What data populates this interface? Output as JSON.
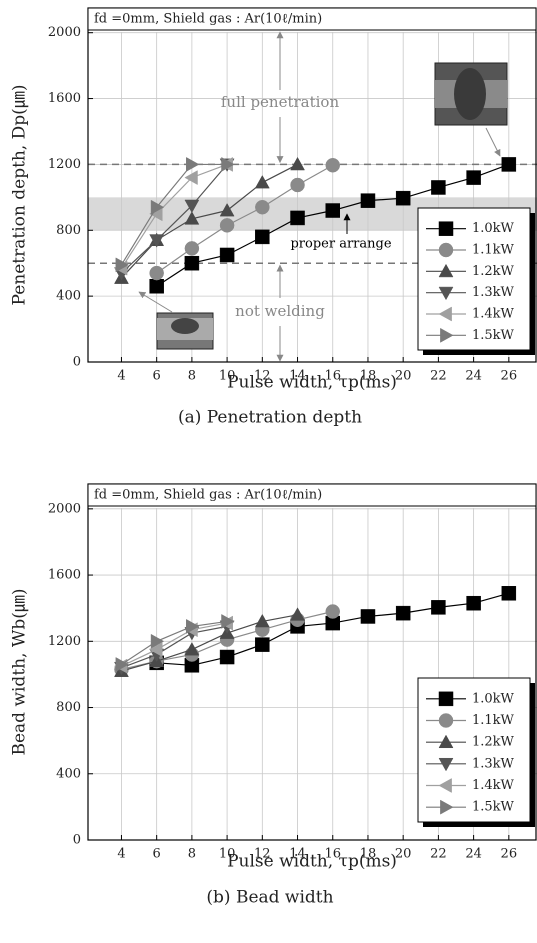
{
  "charts": [
    {
      "type": "line",
      "header": "fd =0mm, Shield gas : Ar(10ℓ/min)",
      "y_label": "Penetration depth, Dp(㎛)",
      "x_label": "Pulse width, τp(ms)",
      "caption": "(a) Penetration depth",
      "x": [
        4,
        6,
        8,
        10,
        12,
        14,
        16,
        18,
        20,
        22,
        24,
        26
      ],
      "xlim": [
        2.1,
        27.6
      ],
      "xticks": [
        4,
        6,
        8,
        10,
        12,
        14,
        16,
        18,
        20,
        22,
        24,
        26
      ],
      "ylim": [
        0,
        2150
      ],
      "yticks": [
        0,
        400,
        800,
        1200,
        1600,
        2000
      ],
      "grid": true,
      "reference_lines": [
        1200,
        600
      ],
      "band": [
        800,
        1000
      ],
      "annotations": [
        "full penetration",
        "proper arrange",
        "not welding"
      ],
      "series": [
        {
          "name": "1.0kW",
          "color": "#000000",
          "marker": "square",
          "values": [
            null,
            460,
            600,
            650,
            760,
            875,
            920,
            980,
            995,
            1060,
            1120,
            1200
          ]
        },
        {
          "name": "1.1kW",
          "color": "#8a8a8a",
          "marker": "circle",
          "values": [
            null,
            540,
            690,
            830,
            940,
            1075,
            1195,
            null,
            null,
            null,
            null,
            null
          ]
        },
        {
          "name": "1.2kW",
          "color": "#4a4a4a",
          "marker": "up",
          "values": [
            510,
            740,
            870,
            920,
            1090,
            1200,
            null,
            null,
            null,
            null,
            null,
            null
          ]
        },
        {
          "name": "1.3kW",
          "color": "#555555",
          "marker": "down",
          "values": [
            540,
            740,
            950,
            1200,
            null,
            null,
            null,
            null,
            null,
            null,
            null,
            null
          ]
        },
        {
          "name": "1.4kW",
          "color": "#a0a0a0",
          "marker": "left",
          "values": [
            570,
            900,
            1120,
            1200,
            null,
            null,
            null,
            null,
            null,
            null,
            null,
            null
          ]
        },
        {
          "name": "1.5kW",
          "color": "#7a7a7a",
          "marker": "right",
          "values": [
            590,
            940,
            1200,
            1200,
            null,
            null,
            null,
            null,
            null,
            null,
            null,
            null
          ]
        }
      ]
    },
    {
      "type": "line",
      "header": "fd =0mm, Shield gas : Ar(10ℓ/min)",
      "y_label": "Bead width, Wb(㎛)",
      "x_label": "Pulse width, τp(ms)",
      "caption": "(b) Bead width",
      "x": [
        4,
        6,
        8,
        10,
        12,
        14,
        16,
        18,
        20,
        22,
        24,
        26
      ],
      "xlim": [
        2.1,
        27.6
      ],
      "xticks": [
        4,
        6,
        8,
        10,
        12,
        14,
        16,
        18,
        20,
        22,
        24,
        26
      ],
      "ylim": [
        0,
        2150
      ],
      "yticks": [
        0,
        400,
        800,
        1200,
        1600,
        2000
      ],
      "grid": true,
      "series": [
        {
          "name": "1.0kW",
          "color": "#000000",
          "marker": "square",
          "values": [
            null,
            1070,
            1055,
            1105,
            1180,
            1290,
            1310,
            1350,
            1370,
            1405,
            1430,
            1490
          ]
        },
        {
          "name": "1.1kW",
          "color": "#8a8a8a",
          "marker": "circle",
          "values": [
            1030,
            1080,
            1120,
            1210,
            1270,
            1330,
            1380,
            null,
            null,
            null,
            null,
            null
          ]
        },
        {
          "name": "1.2kW",
          "color": "#4a4a4a",
          "marker": "up",
          "values": [
            1020,
            1080,
            1150,
            1250,
            1320,
            1360,
            null,
            null,
            null,
            null,
            null,
            null
          ]
        },
        {
          "name": "1.3kW",
          "color": "#555555",
          "marker": "down",
          "values": [
            1040,
            1120,
            1250,
            1290,
            null,
            null,
            null,
            null,
            null,
            null,
            null,
            null
          ]
        },
        {
          "name": "1.4kW",
          "color": "#a0a0a0",
          "marker": "left",
          "values": [
            1050,
            1150,
            1270,
            1310,
            null,
            null,
            null,
            null,
            null,
            null,
            null,
            null
          ]
        },
        {
          "name": "1.5kW",
          "color": "#7a7a7a",
          "marker": "right",
          "values": [
            1060,
            1200,
            1290,
            1320,
            null,
            null,
            null,
            null,
            null,
            null,
            null,
            null
          ]
        }
      ]
    }
  ]
}
